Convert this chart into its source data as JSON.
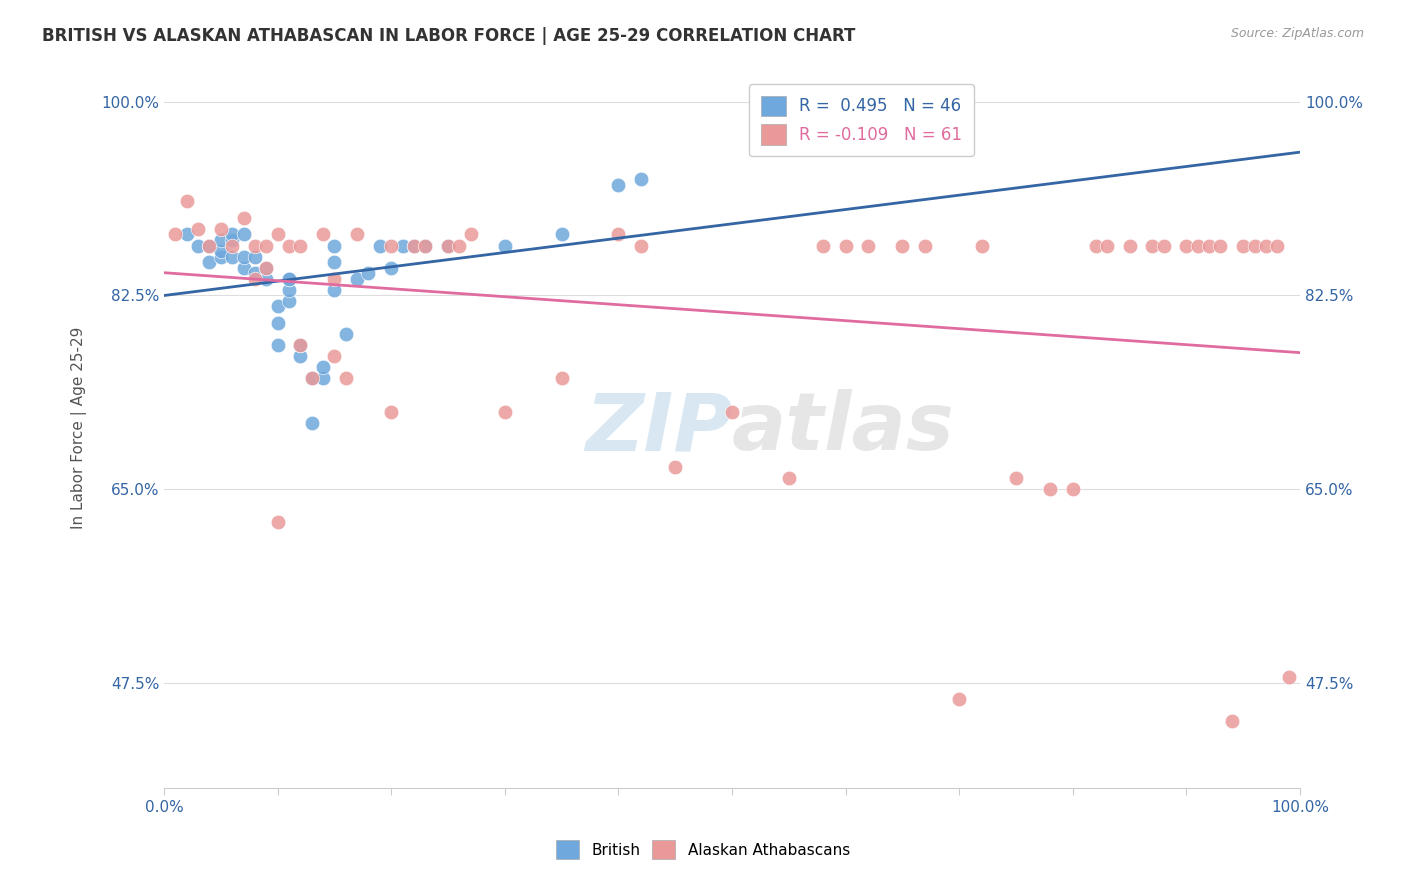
{
  "title": "BRITISH VS ALASKAN ATHABASCAN IN LABOR FORCE | AGE 25-29 CORRELATION CHART",
  "source": "Source: ZipAtlas.com",
  "ylabel": "In Labor Force | Age 25-29",
  "xlim": [
    0.0,
    1.0
  ],
  "ylim": [
    0.38,
    1.03
  ],
  "y_tick_labels": [
    "47.5%",
    "65.0%",
    "82.5%",
    "100.0%"
  ],
  "y_ticks": [
    0.475,
    0.65,
    0.825,
    1.0
  ],
  "british_R": 0.495,
  "british_N": 46,
  "alaskan_R": -0.109,
  "alaskan_N": 61,
  "british_color": "#6fa8dc",
  "alaskan_color": "#ea9999",
  "british_line_color": "#3465a4",
  "alaskan_line_color": "#e06c9f",
  "legend_blue_text_color": "#3465a4",
  "legend_pink_text_color": "#e06c9f",
  "watermark_zip": "ZIP",
  "watermark_atlas": "atlas",
  "british_x": [
    0.02,
    0.03,
    0.04,
    0.04,
    0.05,
    0.05,
    0.05,
    0.06,
    0.06,
    0.06,
    0.07,
    0.07,
    0.07,
    0.08,
    0.08,
    0.09,
    0.09,
    0.1,
    0.1,
    0.1,
    0.11,
    0.11,
    0.11,
    0.11,
    0.12,
    0.12,
    0.13,
    0.13,
    0.14,
    0.14,
    0.15,
    0.15,
    0.15,
    0.16,
    0.17,
    0.18,
    0.19,
    0.2,
    0.21,
    0.22,
    0.23,
    0.25,
    0.3,
    0.35,
    0.4,
    0.42
  ],
  "british_y": [
    0.88,
    0.87,
    0.855,
    0.87,
    0.86,
    0.865,
    0.875,
    0.86,
    0.875,
    0.88,
    0.85,
    0.86,
    0.88,
    0.845,
    0.86,
    0.84,
    0.85,
    0.78,
    0.8,
    0.815,
    0.82,
    0.83,
    0.84,
    0.84,
    0.77,
    0.78,
    0.71,
    0.75,
    0.75,
    0.76,
    0.83,
    0.855,
    0.87,
    0.79,
    0.84,
    0.845,
    0.87,
    0.85,
    0.87,
    0.87,
    0.87,
    0.87,
    0.87,
    0.88,
    0.925,
    0.93
  ],
  "alaskan_x": [
    0.01,
    0.02,
    0.03,
    0.04,
    0.05,
    0.06,
    0.07,
    0.08,
    0.08,
    0.09,
    0.09,
    0.1,
    0.1,
    0.11,
    0.12,
    0.12,
    0.13,
    0.14,
    0.15,
    0.15,
    0.16,
    0.17,
    0.2,
    0.2,
    0.22,
    0.23,
    0.25,
    0.26,
    0.27,
    0.3,
    0.35,
    0.4,
    0.42,
    0.45,
    0.5,
    0.55,
    0.58,
    0.6,
    0.62,
    0.65,
    0.67,
    0.7,
    0.72,
    0.75,
    0.78,
    0.8,
    0.82,
    0.83,
    0.85,
    0.87,
    0.88,
    0.9,
    0.91,
    0.92,
    0.93,
    0.94,
    0.95,
    0.96,
    0.97,
    0.98,
    0.99
  ],
  "alaskan_y": [
    0.88,
    0.91,
    0.885,
    0.87,
    0.885,
    0.87,
    0.895,
    0.84,
    0.87,
    0.85,
    0.87,
    0.88,
    0.62,
    0.87,
    0.87,
    0.78,
    0.75,
    0.88,
    0.84,
    0.77,
    0.75,
    0.88,
    0.72,
    0.87,
    0.87,
    0.87,
    0.87,
    0.87,
    0.88,
    0.72,
    0.75,
    0.88,
    0.87,
    0.67,
    0.72,
    0.66,
    0.87,
    0.87,
    0.87,
    0.87,
    0.87,
    0.46,
    0.87,
    0.66,
    0.65,
    0.65,
    0.87,
    0.87,
    0.87,
    0.87,
    0.87,
    0.87,
    0.87,
    0.87,
    0.87,
    0.44,
    0.87,
    0.87,
    0.87,
    0.87,
    0.48
  ],
  "background_color": "#ffffff",
  "grid_color": "#dddddd"
}
